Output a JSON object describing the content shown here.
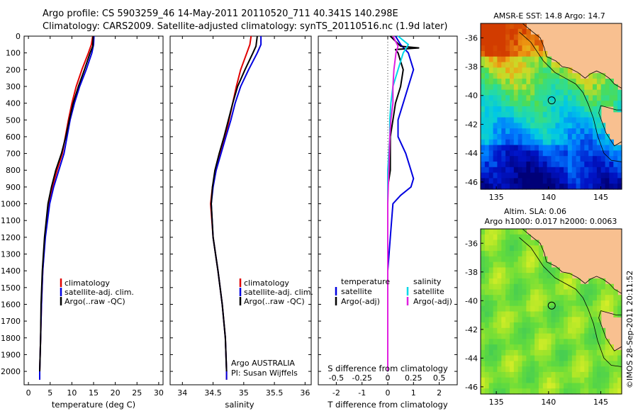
{
  "header": {
    "line1": "Argo profile: CS 5903259_46 14-May-2011 20110520_711 40.341S 140.298E",
    "line2": "Climatology: CARS2009. Satellite-adjusted climatology: synTS_20110516.nc (1.9d later)"
  },
  "colors": {
    "climatology": "#e00000",
    "satellite": "#0000e0",
    "argo": "#000000",
    "satellite_s": "#00d8e8",
    "argo_s": "#e020e0",
    "land": "#f8c090"
  },
  "chart_data": [
    {
      "type": "line",
      "panel": "temperature",
      "xlabel": "temperature (deg C)",
      "ylabel": "",
      "xlim": [
        -1,
        31
      ],
      "ylim": [
        0,
        2080
      ],
      "xticks": [
        0,
        5,
        10,
        15,
        20,
        25,
        30
      ],
      "yticks": [
        0,
        100,
        200,
        300,
        400,
        500,
        600,
        700,
        800,
        900,
        1000,
        1100,
        1200,
        1300,
        1400,
        1500,
        1600,
        1700,
        1800,
        1900,
        2000
      ],
      "legend": [
        "climatology",
        "satellite-adj. clim.",
        "Argo(..raw -QC)"
      ],
      "series": [
        {
          "name": "climatology",
          "depth": [
            0,
            50,
            100,
            200,
            300,
            400,
            500,
            600,
            700,
            800,
            900,
            1000,
            1200,
            1400,
            1600,
            1800,
            2000,
            2050
          ],
          "values": [
            14.8,
            14.5,
            13.8,
            12.3,
            11.0,
            10.0,
            9.2,
            8.5,
            7.8,
            6.6,
            5.5,
            4.7,
            3.8,
            3.3,
            3.0,
            2.8,
            2.6,
            2.6
          ]
        },
        {
          "name": "satellite-adj. clim.",
          "depth": [
            0,
            50,
            100,
            200,
            300,
            400,
            500,
            600,
            700,
            800,
            900,
            1000,
            1200,
            1400,
            1600,
            1800,
            2000,
            2050
          ],
          "values": [
            15.1,
            15.0,
            14.6,
            13.3,
            11.8,
            10.6,
            9.6,
            8.9,
            8.2,
            7.0,
            5.8,
            4.9,
            3.9,
            3.3,
            3.0,
            2.8,
            2.6,
            2.6
          ]
        },
        {
          "name": "Argo(..raw -QC)",
          "depth": [
            0,
            60,
            100,
            200,
            300,
            400,
            500,
            600,
            700,
            800,
            900,
            1000,
            1200,
            1400,
            1600,
            1800,
            2000
          ],
          "values": [
            14.9,
            14.8,
            14.2,
            12.9,
            11.5,
            10.3,
            9.4,
            8.6,
            7.6,
            6.3,
            5.3,
            4.5,
            3.7,
            3.2,
            2.9,
            2.8,
            2.6
          ]
        }
      ]
    },
    {
      "type": "line",
      "panel": "salinity",
      "xlabel": "salinity",
      "xlim": [
        33.8,
        36.1
      ],
      "ylim": [
        0,
        2080
      ],
      "xticks": [
        34,
        34.5,
        35,
        35.5,
        36
      ],
      "legend": [
        "climatology",
        "satellite-adj. clim.",
        "Argo(..raw -QC)"
      ],
      "series": [
        {
          "name": "climatology",
          "depth": [
            0,
            50,
            100,
            200,
            300,
            400,
            500,
            600,
            700,
            800,
            900,
            1000,
            1200,
            1400,
            1600,
            1800,
            2000,
            2050
          ],
          "values": [
            35.12,
            35.1,
            35.05,
            34.95,
            34.88,
            34.82,
            34.76,
            34.7,
            34.62,
            34.55,
            34.49,
            34.46,
            34.5,
            34.58,
            34.65,
            34.7,
            34.72,
            34.72
          ]
        },
        {
          "name": "satellite-adj. clim.",
          "depth": [
            0,
            50,
            100,
            200,
            300,
            400,
            500,
            600,
            700,
            800,
            900,
            1000,
            1200,
            1400,
            1600,
            1800,
            2000,
            2050
          ],
          "values": [
            35.28,
            35.28,
            35.22,
            35.08,
            34.95,
            34.86,
            34.79,
            34.71,
            34.63,
            34.55,
            34.5,
            34.47,
            34.5,
            34.58,
            34.65,
            34.7,
            34.72,
            34.72
          ]
        },
        {
          "name": "Argo(..raw -QC)",
          "depth": [
            0,
            60,
            100,
            200,
            300,
            400,
            500,
            600,
            700,
            800,
            900,
            1000,
            1200,
            1400,
            1600,
            1800,
            2000
          ],
          "values": [
            35.22,
            35.2,
            35.15,
            35.02,
            34.9,
            34.82,
            34.75,
            34.68,
            34.6,
            34.53,
            34.49,
            34.47,
            34.5,
            34.58,
            34.65,
            34.7,
            34.72
          ]
        }
      ],
      "annotation": [
        "Argo AUSTRALIA",
        "PI: Susan Wijffels"
      ]
    },
    {
      "type": "line",
      "panel": "difference",
      "xlabel": "T difference from climatology",
      "xlabel_top": "S difference from climatology",
      "xlim": [
        -2.7,
        2.7
      ],
      "ylim": [
        0,
        2080
      ],
      "xticks": [
        -2,
        -1,
        0,
        1,
        2
      ],
      "xticks_top": [
        "-0.5",
        "-0.25",
        "0",
        "0.25",
        "0.5"
      ],
      "legend_t_title": "temperature",
      "legend_s_title": "salinity",
      "legend": [
        "satellite",
        "Argo(-adj)",
        "satellite",
        "Argo(-adj)"
      ],
      "series": [
        {
          "name": "T satellite",
          "depth": [
            0,
            50,
            100,
            200,
            300,
            400,
            500,
            600,
            700,
            800,
            850,
            900,
            950,
            1000,
            1200,
            1400,
            1600,
            1800,
            2000
          ],
          "values": [
            0.3,
            0.5,
            0.8,
            1.0,
            0.8,
            0.6,
            0.4,
            0.4,
            0.7,
            0.9,
            1.0,
            0.9,
            0.5,
            0.2,
            0.1,
            0.0,
            0.0,
            0.0,
            0.0
          ]
        },
        {
          "name": "T Argo(-adj)",
          "depth": [
            0,
            60,
            70,
            80,
            100,
            150,
            200,
            300,
            400,
            500,
            600,
            700,
            800,
            900,
            1000,
            1200,
            1400,
            1600,
            1800,
            2000
          ],
          "values": [
            0.1,
            0.5,
            1.2,
            0.3,
            0.4,
            0.5,
            0.6,
            0.5,
            0.3,
            0.2,
            0.1,
            0.1,
            0.1,
            0.0,
            0.0,
            0.0,
            0.0,
            0.0,
            0.0,
            0.0
          ]
        },
        {
          "name": "S satellite",
          "depth": [
            0,
            50,
            100,
            200,
            300,
            400,
            500,
            600,
            800,
            1000,
            1200,
            1400,
            1600,
            1800,
            2000
          ],
          "values": [
            0.1,
            0.2,
            0.15,
            0.1,
            0.05,
            0.03,
            0.02,
            0.02,
            0.0,
            0.0,
            0.0,
            0.0,
            0.0,
            0.0,
            0.0
          ]
        },
        {
          "name": "S Argo(-adj)",
          "depth": [
            0,
            60,
            100,
            200,
            300,
            400,
            500,
            600,
            800,
            1000,
            1200,
            1400,
            1600,
            1800,
            2000
          ],
          "values": [
            0.05,
            0.1,
            0.08,
            0.06,
            0.05,
            0.05,
            0.03,
            0.02,
            0.01,
            0.0,
            0.0,
            0.0,
            0.0,
            0.0,
            0.0
          ]
        }
      ]
    },
    {
      "type": "heatmap",
      "panel": "sst_map",
      "title": "AMSR-E SST: 14.8 Argo: 14.7",
      "xlim": [
        133.5,
        147
      ],
      "ylim": [
        -46.5,
        -35
      ],
      "xticks": [
        135,
        140,
        145
      ],
      "yticks": [
        -36,
        -38,
        -40,
        -42,
        -44,
        -46
      ],
      "marker": {
        "lon": 140.3,
        "lat": -40.34
      }
    },
    {
      "type": "heatmap",
      "panel": "sla_map",
      "title_line1": "Altim. SLA: 0.06",
      "title_line2": "Argo h1000: 0.017 h2000: 0.0063",
      "xlim": [
        133.5,
        147
      ],
      "ylim": [
        -46.5,
        -35
      ],
      "xticks": [
        135,
        140,
        145
      ],
      "yticks": [
        -36,
        -38,
        -40,
        -42,
        -44,
        -46
      ],
      "marker": {
        "lon": 140.3,
        "lat": -40.34
      }
    }
  ],
  "footer": {
    "credit": "©IMOS 28-Sep-2011 20:11:52"
  }
}
